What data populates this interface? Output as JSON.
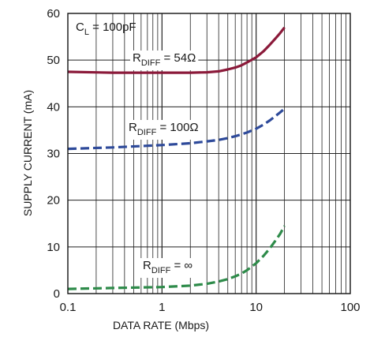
{
  "chart_data": {
    "type": "line",
    "xlabel": "DATA RATE (Mbps)",
    "ylabel": "SUPPLY CURRENT (mA)",
    "x_scale": "log",
    "xlim": [
      0.1,
      100
    ],
    "ylim": [
      0,
      60
    ],
    "grid": true,
    "x_ticks": [
      0.1,
      1,
      10,
      100
    ],
    "x_tick_labels": [
      "0.1",
      "1",
      "10",
      "100"
    ],
    "y_ticks": [
      0,
      10,
      20,
      30,
      40,
      50,
      60
    ],
    "y_tick_labels": [
      "0",
      "10",
      "20",
      "30",
      "40",
      "50",
      "60"
    ],
    "annotations": [
      {
        "main": "C",
        "sub": "L",
        "rest": " = 100pF"
      },
      {
        "main": "R",
        "sub": "DIFF",
        "rest": " = 54Ω"
      },
      {
        "main": "R",
        "sub": "DIFF",
        "rest": " = 100Ω"
      },
      {
        "main": "R",
        "sub": "DIFF",
        "rest": " = ∞"
      }
    ],
    "series": [
      {
        "color": "#8b1a3a",
        "style": "solid",
        "x": [
          0.1,
          0.3,
          1,
          2,
          3,
          4,
          5,
          6,
          7,
          8,
          10,
          12,
          14,
          16,
          18,
          20
        ],
        "y": [
          47.5,
          47.3,
          47.3,
          47.3,
          47.4,
          47.6,
          48.0,
          48.4,
          48.9,
          49.5,
          50.6,
          51.9,
          53.3,
          54.6,
          55.8,
          57.0
        ]
      },
      {
        "color": "#2e4a9a",
        "style": "dashed",
        "x": [
          0.1,
          0.3,
          1,
          2,
          3,
          4,
          5,
          6,
          7,
          8,
          10,
          12,
          14,
          16,
          18,
          20
        ],
        "y": [
          31.0,
          31.3,
          31.8,
          32.2,
          32.6,
          32.9,
          33.3,
          33.7,
          34.1,
          34.5,
          35.3,
          36.2,
          37.1,
          38.0,
          38.8,
          39.6
        ]
      },
      {
        "color": "#2e8b4a",
        "style": "dashed",
        "x": [
          0.1,
          0.3,
          1,
          2,
          3,
          4,
          5,
          6,
          7,
          8,
          10,
          12,
          14,
          16,
          18,
          20
        ],
        "y": [
          1.0,
          1.2,
          1.4,
          1.7,
          2.1,
          2.6,
          3.1,
          3.7,
          4.3,
          5.0,
          6.5,
          8.1,
          9.7,
          11.3,
          12.8,
          14.5
        ]
      }
    ]
  }
}
